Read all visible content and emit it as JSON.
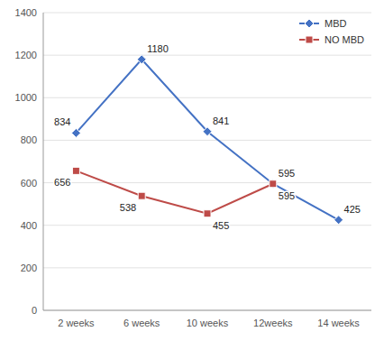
{
  "chart_data": {
    "type": "line",
    "categories": [
      "2 weeks",
      "6 weeks",
      "10 weeks",
      "12weeks",
      "14 weeks"
    ],
    "series": [
      {
        "name": "MBD",
        "color": "#4472C4",
        "marker": "diamond",
        "values": [
          834,
          1180,
          841,
          595,
          425
        ]
      },
      {
        "name": "NO MBD",
        "color": "#BE4B48",
        "marker": "square",
        "values": [
          656,
          538,
          455,
          595,
          null
        ]
      }
    ],
    "ylim": [
      0,
      1400
    ],
    "yticks": [
      0,
      200,
      400,
      600,
      800,
      1000,
      1200,
      1400
    ],
    "grid": true,
    "legend": "upper right",
    "data_labels": true
  }
}
